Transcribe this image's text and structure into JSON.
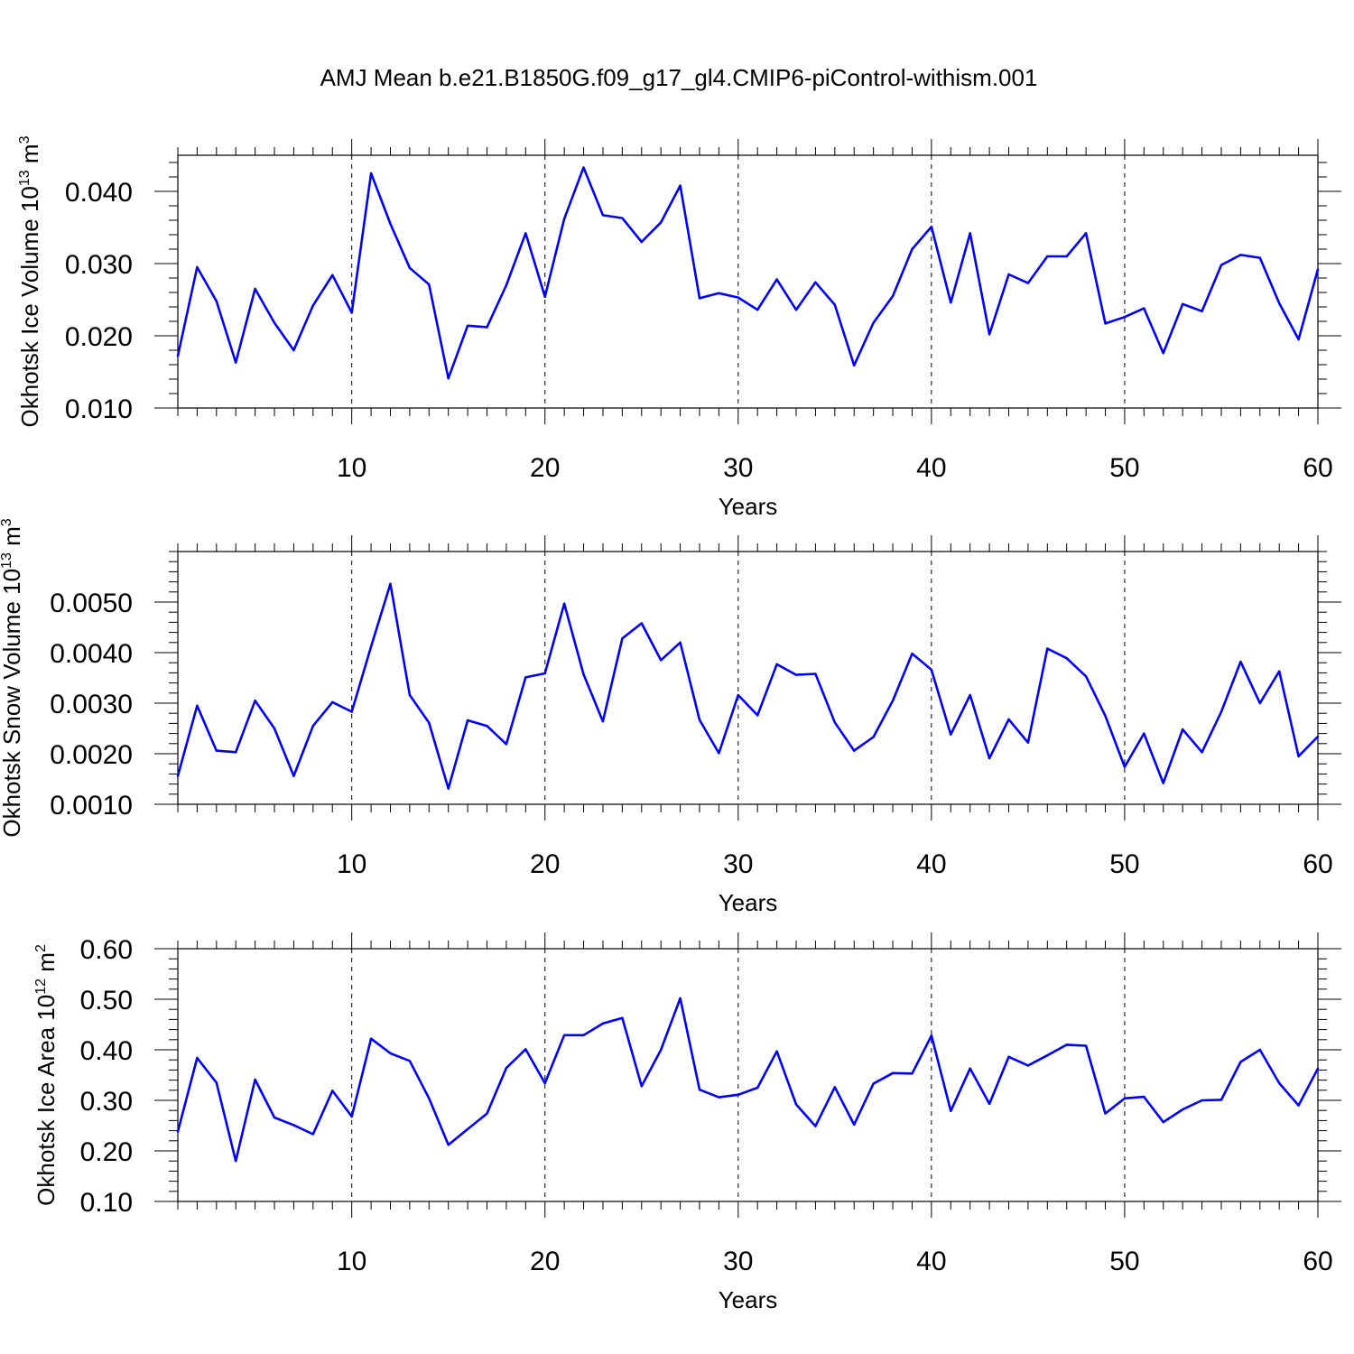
{
  "title": "AMJ Mean b.e21.B1850G.f09_g17_gl4.CMIP6-piControl-withism.001",
  "colors": {
    "line": "#0000ff",
    "axis": "#000000",
    "grid": "#000000"
  },
  "chart_data": [
    {
      "type": "line",
      "xlabel": "Years",
      "ylabel": "Okhotsk Ice Volume 10",
      "ylabel_exp": "13",
      "ylabel_unit": "m",
      "ylabel_unit_exp": "3",
      "xlim": [
        1,
        60
      ],
      "ylim": [
        0.01,
        0.045
      ],
      "xticks": [
        10,
        20,
        30,
        40,
        50,
        60
      ],
      "xtick_labels": [
        "10",
        "20",
        "30",
        "40",
        "50",
        "60"
      ],
      "yticks": [
        0.01,
        0.02,
        0.03,
        0.04
      ],
      "ytick_labels": [
        "0.010",
        "0.020",
        "0.030",
        "0.040"
      ],
      "grid": "vertical dashed at x ticks",
      "x": [
        1,
        2,
        3,
        4,
        5,
        6,
        7,
        8,
        9,
        10,
        11,
        12,
        13,
        14,
        15,
        16,
        17,
        18,
        19,
        20,
        21,
        22,
        23,
        24,
        25,
        26,
        27,
        28,
        29,
        30,
        31,
        32,
        33,
        34,
        35,
        36,
        37,
        38,
        39,
        40,
        41,
        42,
        43,
        44,
        45,
        46,
        47,
        48,
        49,
        50,
        51,
        52,
        53,
        54,
        55,
        56,
        57,
        58,
        59,
        60
      ],
      "values": [
        0.0172,
        0.0295,
        0.0248,
        0.0163,
        0.0265,
        0.0218,
        0.018,
        0.0242,
        0.0284,
        0.0232,
        0.0425,
        0.0355,
        0.0294,
        0.0271,
        0.0141,
        0.0214,
        0.0212,
        0.027,
        0.0342,
        0.0254,
        0.0362,
        0.0433,
        0.0367,
        0.0363,
        0.033,
        0.0357,
        0.0408,
        0.0252,
        0.0259,
        0.0253,
        0.0236,
        0.0278,
        0.0236,
        0.0274,
        0.0243,
        0.0159,
        0.0218,
        0.0255,
        0.032,
        0.0351,
        0.0246,
        0.0342,
        0.0202,
        0.0285,
        0.0273,
        0.031,
        0.031,
        0.0342,
        0.0217,
        0.0226,
        0.0238,
        0.0176,
        0.0244,
        0.0234,
        0.0298,
        0.0312,
        0.0308,
        0.0245,
        0.0195,
        0.0292
      ]
    },
    {
      "type": "line",
      "xlabel": "Years",
      "ylabel": "Okhotsk Snow Volume 10",
      "ylabel_exp": "13",
      "ylabel_unit": "m",
      "ylabel_unit_exp": "3",
      "xlim": [
        1,
        60
      ],
      "ylim": [
        0.001,
        0.006
      ],
      "xticks": [
        10,
        20,
        30,
        40,
        50,
        60
      ],
      "xtick_labels": [
        "10",
        "20",
        "30",
        "40",
        "50",
        "60"
      ],
      "yticks": [
        0.001,
        0.002,
        0.003,
        0.004,
        0.005
      ],
      "ytick_labels": [
        "0.0010",
        "0.0020",
        "0.0030",
        "0.0040",
        "0.0050"
      ],
      "grid": "vertical dashed at x ticks",
      "x": [
        1,
        2,
        3,
        4,
        5,
        6,
        7,
        8,
        9,
        10,
        11,
        12,
        13,
        14,
        15,
        16,
        17,
        18,
        19,
        20,
        21,
        22,
        23,
        24,
        25,
        26,
        27,
        28,
        29,
        30,
        31,
        32,
        33,
        34,
        35,
        36,
        37,
        38,
        39,
        40,
        41,
        42,
        43,
        44,
        45,
        46,
        47,
        48,
        49,
        50,
        51,
        52,
        53,
        54,
        55,
        56,
        57,
        58,
        59,
        60
      ],
      "values": [
        0.00156,
        0.00295,
        0.00206,
        0.00203,
        0.00305,
        0.0025,
        0.00156,
        0.00255,
        0.00302,
        0.00283,
        0.00412,
        0.00536,
        0.00316,
        0.00261,
        0.00131,
        0.00266,
        0.00255,
        0.00219,
        0.00351,
        0.00359,
        0.00497,
        0.00357,
        0.00264,
        0.00428,
        0.00458,
        0.00385,
        0.0042,
        0.00267,
        0.00201,
        0.00316,
        0.00276,
        0.00377,
        0.00356,
        0.00358,
        0.00262,
        0.00206,
        0.00233,
        0.00305,
        0.00398,
        0.00366,
        0.00238,
        0.00316,
        0.00191,
        0.00268,
        0.00222,
        0.00408,
        0.00389,
        0.00353,
        0.00275,
        0.00174,
        0.0024,
        0.00142,
        0.00248,
        0.00203,
        0.00283,
        0.00382,
        0.003,
        0.00363,
        0.00195,
        0.00234
      ]
    },
    {
      "type": "line",
      "xlabel": "Years",
      "ylabel": "Okhotsk Ice Area 10",
      "ylabel_exp": "12",
      "ylabel_unit": "m",
      "ylabel_unit_exp": "2",
      "xlim": [
        1,
        60
      ],
      "ylim": [
        0.1,
        0.6
      ],
      "xticks": [
        10,
        20,
        30,
        40,
        50,
        60
      ],
      "xtick_labels": [
        "10",
        "20",
        "30",
        "40",
        "50",
        "60"
      ],
      "yticks": [
        0.1,
        0.2,
        0.3,
        0.4,
        0.5,
        0.6
      ],
      "ytick_labels": [
        "0.10",
        "0.20",
        "0.30",
        "0.40",
        "0.50",
        "0.60"
      ],
      "grid": "vertical dashed at x ticks",
      "x": [
        1,
        2,
        3,
        4,
        5,
        6,
        7,
        8,
        9,
        10,
        11,
        12,
        13,
        14,
        15,
        16,
        17,
        18,
        19,
        20,
        21,
        22,
        23,
        24,
        25,
        26,
        27,
        28,
        29,
        30,
        31,
        32,
        33,
        34,
        35,
        36,
        37,
        38,
        39,
        40,
        41,
        42,
        43,
        44,
        45,
        46,
        47,
        48,
        49,
        50,
        51,
        52,
        53,
        54,
        55,
        56,
        57,
        58,
        59,
        60
      ],
      "values": [
        0.238,
        0.384,
        0.335,
        0.18,
        0.341,
        0.266,
        0.251,
        0.233,
        0.319,
        0.268,
        0.422,
        0.393,
        0.378,
        0.304,
        0.212,
        0.243,
        0.274,
        0.364,
        0.401,
        0.334,
        0.429,
        0.429,
        0.452,
        0.463,
        0.328,
        0.4,
        0.502,
        0.321,
        0.306,
        0.311,
        0.325,
        0.397,
        0.292,
        0.249,
        0.326,
        0.252,
        0.333,
        0.354,
        0.353,
        0.428,
        0.279,
        0.363,
        0.293,
        0.386,
        0.369,
        0.389,
        0.41,
        0.408,
        0.274,
        0.304,
        0.307,
        0.257,
        0.282,
        0.3,
        0.301,
        0.376,
        0.4,
        0.334,
        0.29,
        0.363
      ]
    }
  ]
}
